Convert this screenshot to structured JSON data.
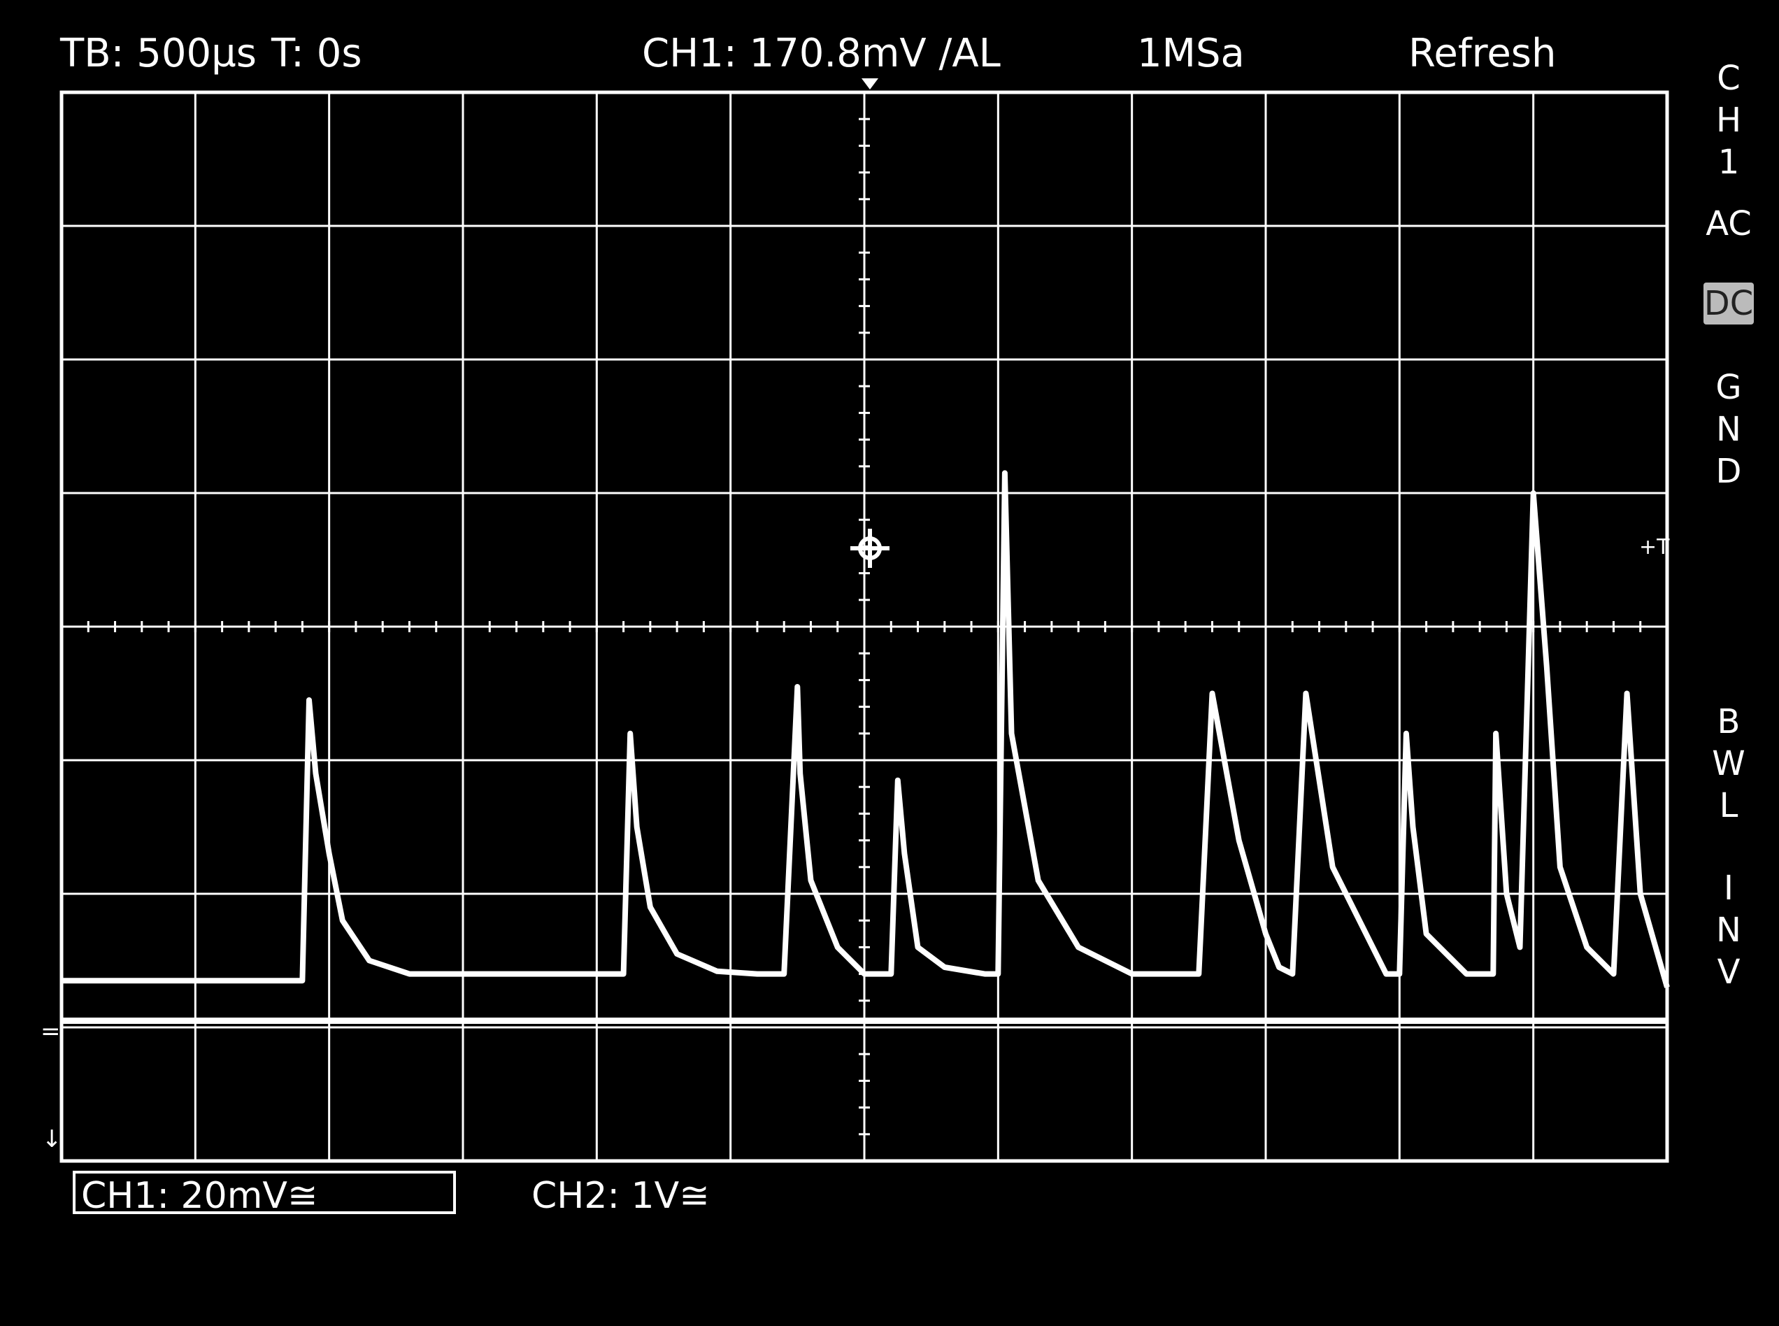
{
  "header": {
    "timebase": "TB: 500µs",
    "trigger_time": "T: 0s",
    "trigger_info": "CH1: 170.8mV ∕AL",
    "sample_rate": "1MSa",
    "mode": "Refresh"
  },
  "side_menu": {
    "channel": [
      "C",
      "H",
      "1"
    ],
    "coupling_ac": "AC",
    "coupling_dc": "DC",
    "ground": [
      "G",
      "N",
      "D"
    ],
    "bwl": [
      "B",
      "W",
      "L"
    ],
    "inv": [
      "I",
      "N",
      "V"
    ]
  },
  "footer": {
    "ch1_scale": "CH1: 20mV≅",
    "ch2_scale": "CH2: 1V≅"
  },
  "colors": {
    "background": "#000000",
    "trace": "#ffffff",
    "grid": "#ffffff"
  },
  "chart_data": {
    "type": "line",
    "grid_divisions": {
      "x": 12,
      "y": 8
    },
    "series": [
      {
        "x": [
          0,
          1.2,
          1.8,
          1.85,
          1.9,
          2.0,
          2.1,
          2.3,
          2.6,
          2.9,
          3.5,
          4.0,
          4.2,
          4.25,
          4.3,
          4.4,
          4.6,
          4.9,
          5.2,
          5.4,
          5.5,
          5.52,
          5.6,
          5.8,
          6.0,
          6.2,
          6.25,
          6.3,
          6.4,
          6.6,
          6.9,
          7.0,
          7.05,
          7.1,
          7.3,
          7.6,
          8.0,
          8.4,
          8.5,
          8.6,
          8.8,
          9.0,
          9.1,
          9.2,
          9.3,
          9.5,
          9.8,
          9.9,
          10.0,
          10.05,
          10.1,
          10.2,
          10.5,
          10.7,
          10.72,
          10.8,
          10.9,
          11.0,
          11.1,
          11.2,
          11.4,
          11.6,
          11.7,
          11.8,
          12.0
        ],
        "y": [
          -2.65,
          -2.65,
          -2.65,
          -0.55,
          -1.1,
          -1.7,
          -2.2,
          -2.5,
          -2.6,
          -2.6,
          -2.6,
          -2.6,
          -2.6,
          -0.8,
          -1.5,
          -2.1,
          -2.45,
          -2.58,
          -2.6,
          -2.6,
          -0.45,
          -1.1,
          -1.9,
          -2.4,
          -2.6,
          -2.6,
          -1.15,
          -1.7,
          -2.4,
          -2.55,
          -2.6,
          -2.6,
          1.15,
          -0.8,
          -1.9,
          -2.4,
          -2.6,
          -2.6,
          -2.6,
          -0.5,
          -1.6,
          -2.3,
          -2.55,
          -2.6,
          -0.5,
          -1.8,
          -2.4,
          -2.6,
          -2.6,
          -0.8,
          -1.5,
          -2.3,
          -2.6,
          -2.6,
          -0.8,
          -2.0,
          -2.4,
          1.0,
          -0.3,
          -1.8,
          -2.4,
          -2.6,
          -0.5,
          -2.0,
          -2.7
        ]
      },
      {
        "x": [
          0,
          12
        ],
        "y": [
          -2.95,
          -2.95
        ]
      }
    ]
  }
}
